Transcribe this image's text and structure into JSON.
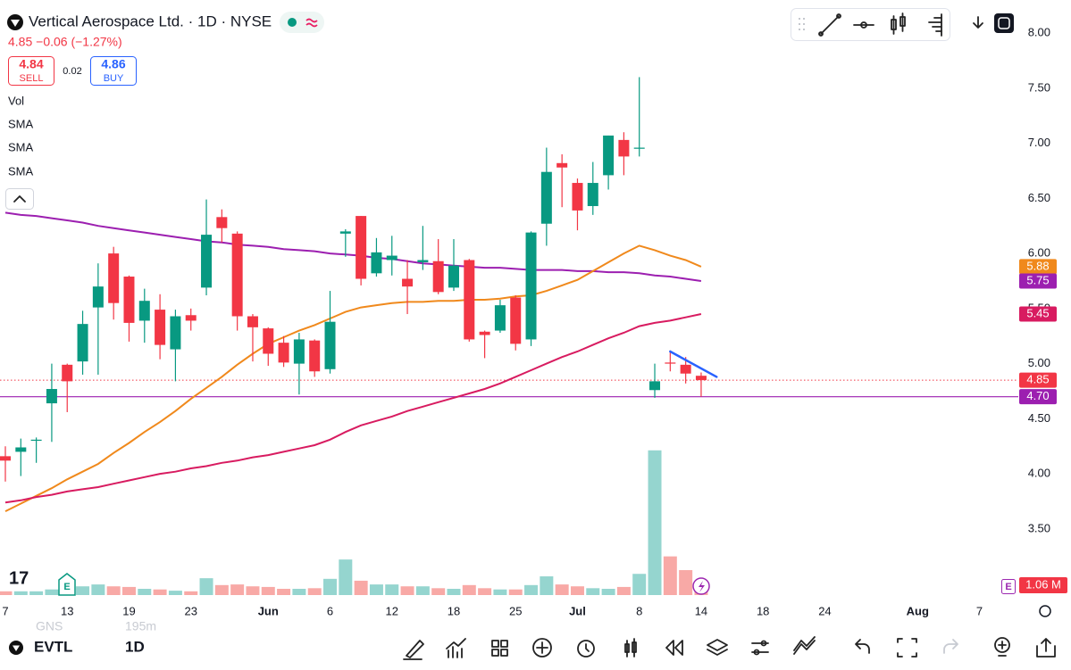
{
  "header": {
    "title": "Vertical Aerospace Ltd. · 1D · NYSE",
    "quote": "4.85 −0.06 (−1.27%)",
    "sell_price": "4.84",
    "sell_label": "SELL",
    "spread": "0.02",
    "buy_price": "4.86",
    "buy_label": "BUY",
    "indicators": [
      "Vol",
      "SMA",
      "SMA",
      "SMA"
    ]
  },
  "footer": {
    "symbol": "EVTL",
    "interval": "1D",
    "ghost": [
      "GNS",
      "195m"
    ]
  },
  "chart_data": {
    "type": "candlestick",
    "categories": [
      "7",
      null,
      null,
      null,
      "13",
      null,
      null,
      null,
      "19",
      null,
      null,
      null,
      "23",
      null,
      null,
      null,
      null,
      "Jun",
      null,
      null,
      null,
      "6",
      null,
      null,
      null,
      "12",
      null,
      null,
      null,
      "18",
      null,
      null,
      null,
      "25",
      null,
      null,
      null,
      "Jul",
      null,
      null,
      null,
      "8",
      null,
      null,
      null,
      "14",
      null,
      null,
      null,
      "18",
      null,
      null,
      null,
      "24",
      null,
      null,
      null,
      null,
      null,
      "Aug",
      null,
      null,
      null,
      "7",
      null,
      null
    ],
    "open": [
      4.16,
      4.2,
      4.3,
      4.64,
      4.99,
      5.02,
      5.51,
      6.0,
      5.79,
      5.39,
      5.49,
      5.13,
      5.44,
      5.69,
      6.33,
      6.18,
      5.43,
      5.32,
      5.19,
      5.0,
      5.21,
      4.95,
      6.18,
      6.34,
      5.82,
      5.94,
      5.77,
      5.92,
      5.93,
      5.69,
      5.94,
      5.29,
      5.3,
      5.6,
      5.22,
      6.27,
      6.82,
      6.64,
      6.43,
      6.71,
      7.03,
      6.95,
      4.76,
      5.01,
      4.99,
      4.89,
      null,
      null,
      null,
      null,
      null,
      null,
      null,
      null,
      null,
      null,
      null,
      null,
      null,
      null,
      null,
      null,
      null,
      null,
      null,
      null
    ],
    "high": [
      4.25,
      4.32,
      4.33,
      5.0,
      5.0,
      5.48,
      5.91,
      6.06,
      5.8,
      5.68,
      5.63,
      5.49,
      5.5,
      6.49,
      6.4,
      6.2,
      5.45,
      5.33,
      5.25,
      5.28,
      5.22,
      5.66,
      6.22,
      6.34,
      6.14,
      6.16,
      5.94,
      6.25,
      6.13,
      6.13,
      5.95,
      5.3,
      5.58,
      5.62,
      6.2,
      6.96,
      6.9,
      6.68,
      6.83,
      7.07,
      7.1,
      7.6,
      5.0,
      5.12,
      5.06,
      4.92,
      null,
      null,
      null,
      null,
      null,
      null,
      null,
      null,
      null,
      null,
      null,
      null,
      null,
      null,
      null,
      null,
      null,
      null,
      null,
      null
    ],
    "low": [
      3.93,
      3.98,
      4.1,
      4.29,
      4.56,
      4.9,
      4.9,
      5.4,
      5.2,
      5.19,
      5.04,
      4.84,
      5.3,
      5.62,
      6.1,
      5.3,
      5.02,
      4.98,
      4.97,
      4.72,
      4.88,
      4.91,
      5.97,
      5.71,
      5.79,
      5.8,
      5.45,
      5.85,
      5.63,
      5.66,
      5.2,
      5.05,
      5.28,
      5.12,
      5.16,
      6.07,
      6.42,
      6.21,
      6.35,
      6.58,
      6.71,
      6.88,
      4.69,
      4.93,
      4.82,
      4.7,
      null,
      null,
      null,
      null,
      null,
      null,
      null,
      null,
      null,
      null,
      null,
      null,
      null,
      null,
      null,
      null,
      null,
      null,
      null,
      null
    ],
    "close": [
      4.12,
      4.24,
      4.31,
      4.77,
      4.84,
      5.36,
      5.7,
      5.55,
      5.37,
      5.57,
      5.17,
      5.43,
      5.39,
      6.17,
      6.23,
      5.43,
      5.33,
      5.09,
      5.01,
      5.22,
      4.93,
      5.38,
      6.2,
      5.77,
      6.01,
      5.98,
      5.7,
      5.94,
      5.65,
      5.89,
      5.22,
      5.26,
      5.53,
      5.18,
      6.19,
      6.74,
      6.78,
      6.39,
      6.64,
      7.07,
      6.88,
      6.96,
      4.84,
      5.0,
      4.91,
      4.85,
      null,
      null,
      null,
      null,
      null,
      null,
      null,
      null,
      null,
      null,
      null,
      null,
      null,
      null,
      null,
      null,
      null,
      null,
      null,
      null
    ],
    "volume": {
      "values": [
        0.3,
        0.3,
        0.3,
        0.45,
        0.6,
        0.7,
        0.85,
        0.7,
        0.65,
        0.5,
        0.45,
        0.35,
        0.3,
        1.35,
        0.8,
        0.85,
        0.7,
        0.65,
        0.5,
        0.5,
        0.55,
        1.3,
        2.85,
        1.15,
        0.85,
        0.85,
        0.7,
        0.7,
        0.55,
        0.5,
        0.8,
        0.55,
        0.45,
        0.45,
        0.8,
        1.5,
        0.85,
        0.7,
        0.55,
        0.5,
        0.65,
        1.7,
        11.6,
        3.1,
        2.0,
        1.06,
        null,
        null,
        null,
        null,
        null,
        null,
        null,
        null,
        null,
        null,
        null,
        null,
        null,
        null,
        null,
        null,
        null,
        null,
        null,
        null
      ],
      "lim": [
        0,
        47.7
      ],
      "last_label": "1.06 M",
      "up_color": "#95d5cf",
      "down_color": "#f8a9a6"
    },
    "up_color": "#089981",
    "down_color": "#f23645",
    "sma": [
      {
        "color": "#9c1fb0",
        "values": [
          6.37,
          6.35,
          6.34,
          6.32,
          6.3,
          6.28,
          6.25,
          6.23,
          6.21,
          6.19,
          6.17,
          6.15,
          6.13,
          6.11,
          6.1,
          6.08,
          6.07,
          6.06,
          6.04,
          6.03,
          6.02,
          6.0,
          5.99,
          5.98,
          5.96,
          5.95,
          5.93,
          5.91,
          5.9,
          5.89,
          5.88,
          5.87,
          5.87,
          5.86,
          5.85,
          5.85,
          5.85,
          5.84,
          5.84,
          5.83,
          5.83,
          5.82,
          5.8,
          5.79,
          5.77,
          5.75,
          null,
          null,
          null,
          null,
          null,
          null,
          null,
          null,
          null,
          null,
          null,
          null,
          null,
          null,
          null,
          null,
          null,
          null,
          null,
          null
        ]
      },
      {
        "color": "#f0891c",
        "values": [
          3.66,
          3.73,
          3.8,
          3.87,
          3.95,
          4.02,
          4.09,
          4.19,
          4.28,
          4.38,
          4.47,
          4.57,
          4.68,
          4.78,
          4.88,
          4.99,
          5.09,
          5.18,
          5.24,
          5.3,
          5.35,
          5.41,
          5.47,
          5.51,
          5.53,
          5.55,
          5.56,
          5.56,
          5.57,
          5.57,
          5.58,
          5.58,
          5.59,
          5.61,
          5.62,
          5.66,
          5.71,
          5.76,
          5.84,
          5.92,
          6.0,
          6.07,
          6.03,
          5.98,
          5.94,
          5.88,
          null,
          null,
          null,
          null,
          null,
          null,
          null,
          null,
          null,
          null,
          null,
          null,
          null,
          null,
          null,
          null,
          null,
          null,
          null,
          null
        ]
      },
      {
        "color": "#d81b60",
        "values": [
          3.74,
          3.76,
          3.79,
          3.81,
          3.84,
          3.86,
          3.88,
          3.91,
          3.94,
          3.97,
          4.0,
          4.02,
          4.05,
          4.07,
          4.1,
          4.12,
          4.15,
          4.17,
          4.2,
          4.23,
          4.26,
          4.31,
          4.38,
          4.44,
          4.48,
          4.52,
          4.57,
          4.61,
          4.65,
          4.69,
          4.73,
          4.77,
          4.82,
          4.88,
          4.94,
          5.0,
          5.06,
          5.11,
          5.17,
          5.23,
          5.28,
          5.34,
          5.37,
          5.39,
          5.42,
          5.45,
          null,
          null,
          null,
          null,
          null,
          null,
          null,
          null,
          null,
          null,
          null,
          null,
          null,
          null,
          null,
          null,
          null,
          null,
          null,
          null
        ]
      }
    ],
    "ylim": [
      2.9,
      8.3
    ],
    "yticks": [
      {
        "value": 8,
        "label": "8.00"
      },
      {
        "value": 7.5,
        "label": "7.50"
      },
      {
        "value": 7,
        "label": "7.00"
      },
      {
        "value": 6.5,
        "label": "6.50"
      },
      {
        "value": 6,
        "label": "6.00"
      },
      {
        "value": 5.5,
        "label": "5.50"
      },
      {
        "value": 5,
        "label": "5.00"
      },
      {
        "value": 4.5,
        "label": "4.50"
      },
      {
        "value": 4,
        "label": "4.00"
      },
      {
        "value": 3.5,
        "label": "3.50"
      }
    ],
    "price_labels": [
      {
        "value": 5.88,
        "label": "5.88",
        "color": "#f0891c"
      },
      {
        "value": 5.75,
        "label": "5.75",
        "color": "#9c1fb0"
      },
      {
        "value": 5.45,
        "label": "5.45",
        "color": "#d81b60"
      },
      {
        "value": 4.85,
        "label": "4.85",
        "color": "#f23645",
        "line": "dotted"
      },
      {
        "value": 4.7,
        "label": "4.70",
        "color": "#9c1fb0",
        "line": "solid"
      }
    ],
    "trendline": {
      "from": 5.11,
      "to": 4.88,
      "color": "#2962ff"
    }
  }
}
